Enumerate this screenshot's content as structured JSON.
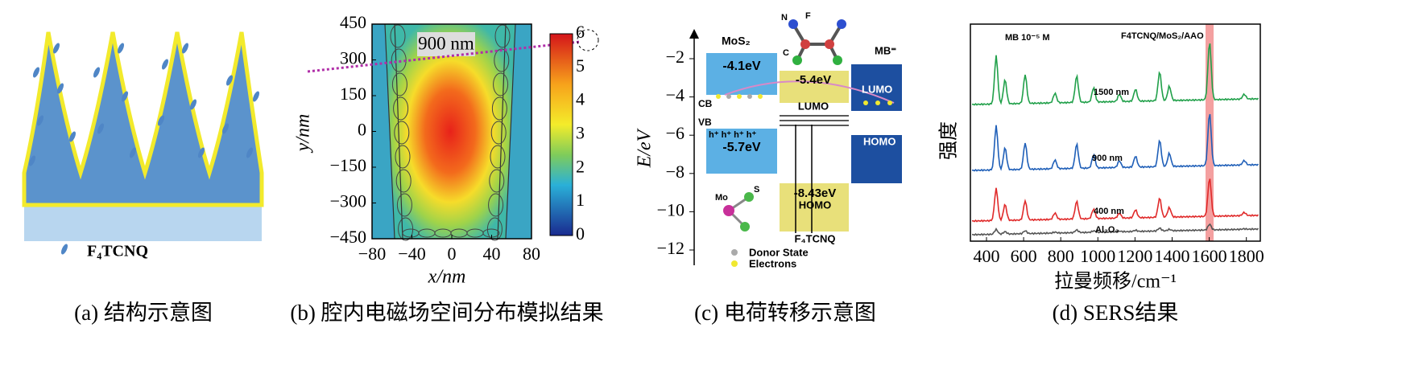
{
  "panel_a": {
    "caption": "(a) 结构示意图",
    "legend_label": "F₄TCNQ"
  },
  "panel_b": {
    "caption": "(b) 腔内电磁场空间分布模拟结果",
    "xlabel": "x/nm",
    "ylabel": "y/nm",
    "xticks": [
      "−80",
      "−40",
      "0",
      "40",
      "80"
    ],
    "yticks": [
      "450",
      "300",
      "150",
      "0",
      "−150",
      "−300",
      "−450"
    ],
    "colorbar_ticks": [
      "6",
      "5",
      "4",
      "3",
      "2",
      "1",
      "0"
    ],
    "annotation": "900 nm"
  },
  "panel_c": {
    "caption": "(c) 电荷转移示意图",
    "ylabel": "E/eV",
    "yticks": [
      "−2",
      "−4",
      "−6",
      "−8",
      "−10",
      "−12"
    ],
    "mos2": "MoS₂",
    "mos2_cb": "-4.1eV",
    "mos2_vb": "-5.7eV",
    "cb": "CB",
    "vb": "VB",
    "holes": "h⁺ h⁺ h⁺ h⁺",
    "f4_lumo_energy": "-5.4eV",
    "f4_lumo": "LUMO",
    "f4_homo_energy": "-8.43eV",
    "f4_homo": "HOMO",
    "f4_name": "F₄TCNQ",
    "mb": "MB⁼",
    "mb_lumo": "LUMO",
    "mb_homo": "HOMO",
    "atom_mo": "Mo",
    "atom_s": "S",
    "atom_n": "N",
    "atom_f": "F",
    "atom_c": "C",
    "legend_donor": "Donor State",
    "legend_electrons": "Electrons"
  },
  "panel_d": {
    "caption": "(d) SERS结果",
    "ylabel": "强度",
    "xlabel": "拉曼频移/cm⁻¹",
    "xticks": [
      "400",
      "600",
      "800",
      "1000",
      "1200",
      "1400",
      "1600",
      "1800"
    ],
    "label_mb": "MB 10⁻⁵ M",
    "label_sample": "F4TCNQ/MoS₂/AAO",
    "trace_1500": "1500 nm",
    "trace_900": "900 nm",
    "trace_400": "400 nm",
    "trace_al2o3": "Al₂O₃"
  }
}
